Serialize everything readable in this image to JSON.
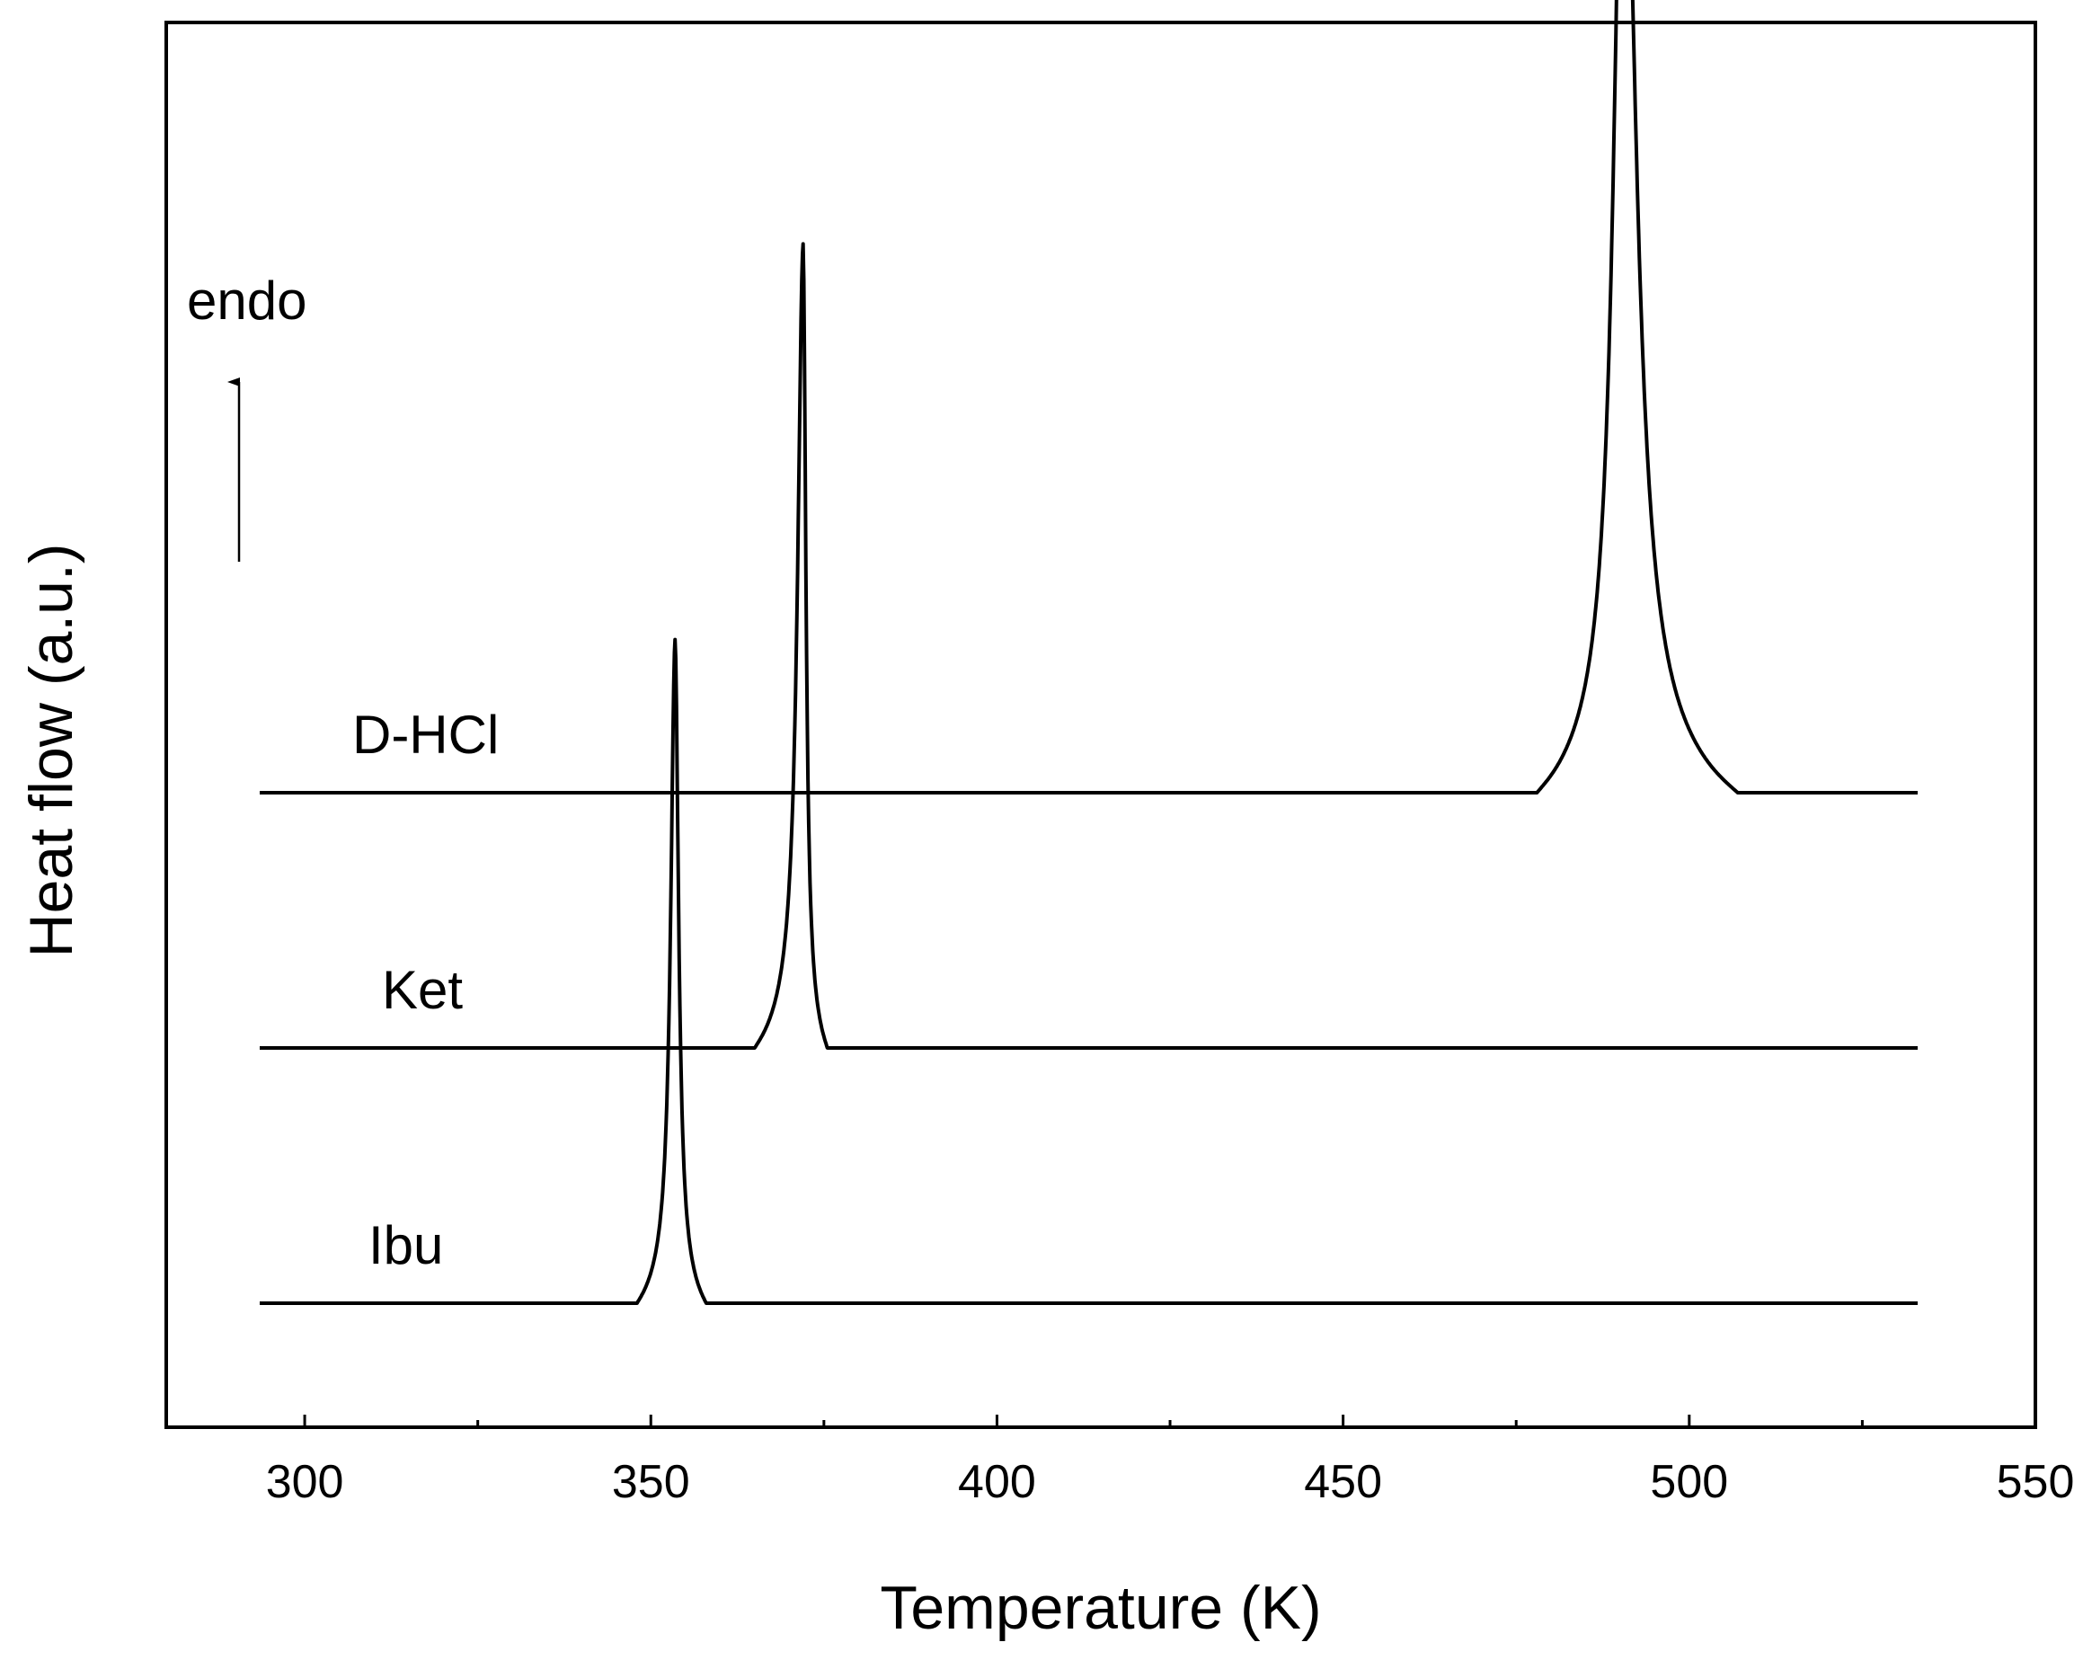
{
  "chart_data": {
    "type": "line",
    "title": "",
    "xlabel": "Temperature (K)",
    "ylabel": "Heat flow (a.u.)",
    "xlim": [
      280,
      550
    ],
    "x_ticks": [
      300,
      350,
      400,
      450,
      500,
      550
    ],
    "x_minor_ticks": [
      325,
      375,
      425,
      475,
      525
    ],
    "y_ticks_visible": false,
    "grid": false,
    "legend": "none",
    "annotation": "endo",
    "annotation_arrow": "up",
    "line_color": "#000000",
    "series": [
      {
        "name": "D-HCl",
        "baseline": 3,
        "x_range": [
          293.5,
          533
        ],
        "peaks": [
          {
            "x": 490.5,
            "height": 4.2,
            "onset": 478,
            "endset": 507
          }
        ]
      },
      {
        "name": "Ket",
        "baseline": 2,
        "x_range": [
          293.5,
          533
        ],
        "peaks": [
          {
            "x": 372,
            "height": 3.15,
            "onset": 365,
            "endset": 375.5
          }
        ]
      },
      {
        "name": "Ibu",
        "baseline": 1,
        "x_range": [
          293.5,
          533
        ],
        "peaks": [
          {
            "x": 353.5,
            "height": 2.6,
            "onset": 348,
            "endset": 358
          }
        ]
      }
    ]
  }
}
